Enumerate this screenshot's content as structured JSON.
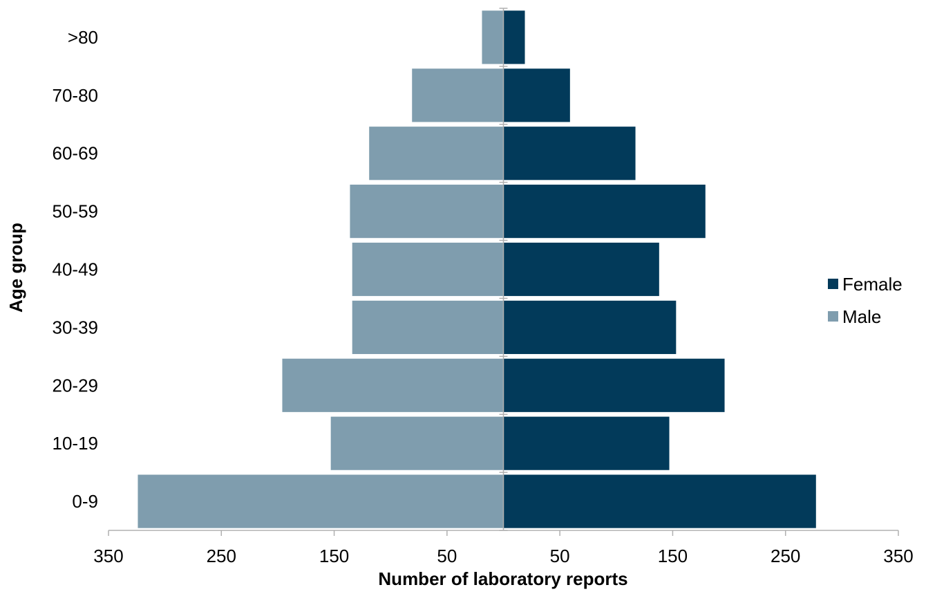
{
  "chart_data": {
    "type": "bar",
    "orientation": "horizontal",
    "layout": "population-pyramid",
    "categories": [
      "0-9",
      "10-19",
      "20-29",
      "30-39",
      "40-49",
      "50-59",
      "60-69",
      "70-80",
      ">80"
    ],
    "series": [
      {
        "name": "Female",
        "side": "right",
        "color": "#023a5a",
        "values": [
          277,
          147,
          196,
          153,
          138,
          179,
          117,
          59,
          19
        ]
      },
      {
        "name": "Male",
        "side": "left",
        "color": "#7f9dae",
        "values": [
          324,
          153,
          196,
          134,
          134,
          136,
          119,
          81,
          19
        ]
      }
    ],
    "xlabel": "Number of laboratory reports",
    "ylabel": "Age group",
    "xlim": [
      -350,
      350
    ],
    "x_tick_values": [
      -350,
      -250,
      -150,
      -50,
      50,
      150,
      250,
      350
    ],
    "x_tick_labels": [
      "350",
      "250",
      "150",
      "50",
      "50",
      "150",
      "250",
      "350"
    ],
    "legend": {
      "position": "right",
      "entries": [
        "Female",
        "Male"
      ]
    },
    "grid": false
  }
}
